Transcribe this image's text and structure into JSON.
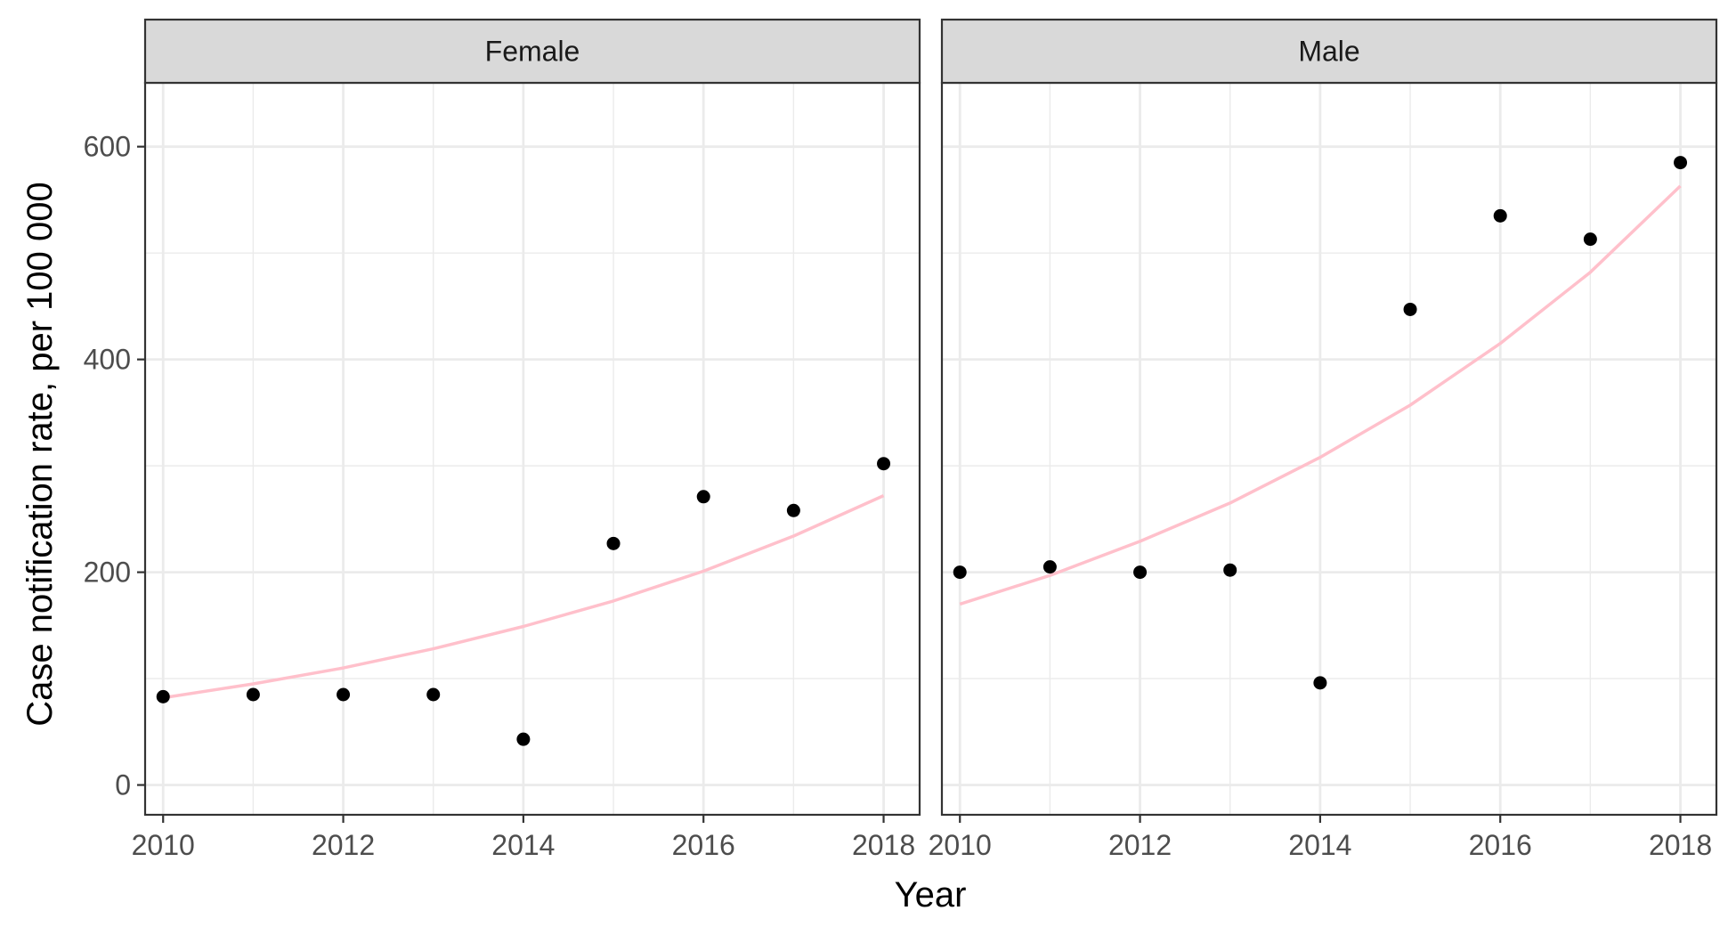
{
  "chart_data": {
    "type": "scatter",
    "facets": [
      {
        "label": "Female",
        "points": {
          "x": [
            2010,
            2011,
            2012,
            2013,
            2014,
            2015,
            2016,
            2017,
            2018
          ],
          "y": [
            83,
            85,
            85,
            85,
            43,
            227,
            271,
            258,
            302
          ]
        },
        "trend": {
          "x": [
            2010,
            2011,
            2012,
            2013,
            2014,
            2015,
            2016,
            2017,
            2018
          ],
          "y": [
            82,
            95,
            110,
            128,
            149,
            173,
            201,
            234,
            272
          ]
        }
      },
      {
        "label": "Male",
        "points": {
          "x": [
            2010,
            2011,
            2012,
            2013,
            2014,
            2015,
            2016,
            2017,
            2018
          ],
          "y": [
            200,
            205,
            200,
            202,
            96,
            447,
            535,
            513,
            585
          ]
        },
        "trend": {
          "x": [
            2010,
            2011,
            2012,
            2013,
            2014,
            2015,
            2016,
            2017,
            2018
          ],
          "y": [
            170,
            197,
            229,
            265,
            308,
            357,
            415,
            482,
            563
          ]
        }
      }
    ],
    "xlabel": "Year",
    "ylabel": "Case notification rate, per 100 000",
    "xlim": [
      2009.8,
      2018.4
    ],
    "ylim": [
      -28,
      660
    ],
    "x_ticks": [
      2010,
      2012,
      2014,
      2016,
      2018
    ],
    "x_tick_labels": [
      "2010",
      "2012",
      "2014",
      "2016",
      "2018"
    ],
    "y_ticks": [
      0,
      200,
      400,
      600
    ],
    "y_tick_labels": [
      "0",
      "200",
      "400",
      "600"
    ],
    "grid": true,
    "point_color": "#000000",
    "trend_color": "#ffc0cb",
    "strip_fill": "#d9d9d9"
  }
}
